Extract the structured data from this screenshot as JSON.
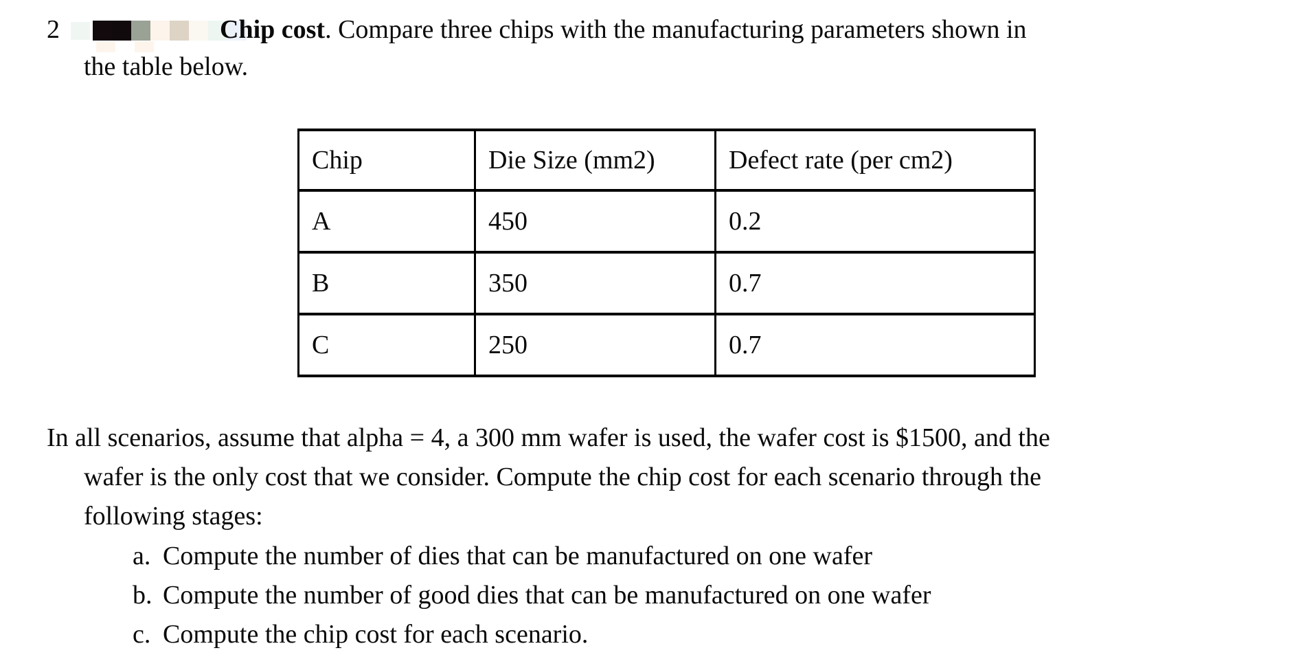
{
  "page": {
    "background": "#ffffff",
    "text_color": "#0b0a0b",
    "table_border_color": "#000000"
  },
  "problem": {
    "number": "2",
    "title_bold": "Chip cost",
    "title_rest": ". Compare three chips with the manufacturing parameters shown in",
    "heading_line2": "the table below."
  },
  "redaction": {
    "description": "pixelated-redacted-name-block",
    "main_row_colors": [
      "#130a0d",
      "#110a0c",
      "#9aa195",
      "#fdf4ec",
      "#ddd4c6",
      "#fbf7f1",
      "#edf6f1",
      "#edf2fa"
    ],
    "sub_row_colors": [
      "#fdf5ec",
      "#fdf5ec"
    ],
    "lead_block_color": "#f0f7f2"
  },
  "table": {
    "headers": [
      "Chip",
      "Die Size (mm2)",
      "Defect rate (per cm2)"
    ],
    "rows": [
      [
        "A",
        "450",
        "0.2"
      ],
      [
        "B",
        "350",
        "0.7"
      ],
      [
        "C",
        "250",
        "0.7"
      ]
    ]
  },
  "body": {
    "lines": [
      "In all scenarios, assume that alpha = 4, a 300 mm wafer is used, the wafer cost is $1500, and the",
      "wafer is the only cost that we consider. Compute the chip cost for each scenario through the",
      "following stages:"
    ],
    "list": [
      {
        "marker": "a.",
        "text": "Compute the number of dies that can be manufactured on one wafer"
      },
      {
        "marker": "b.",
        "text": "Compute the number of good dies that can be manufactured on one wafer"
      },
      {
        "marker": "c.",
        "text": "Compute the chip cost for each scenario."
      }
    ]
  }
}
